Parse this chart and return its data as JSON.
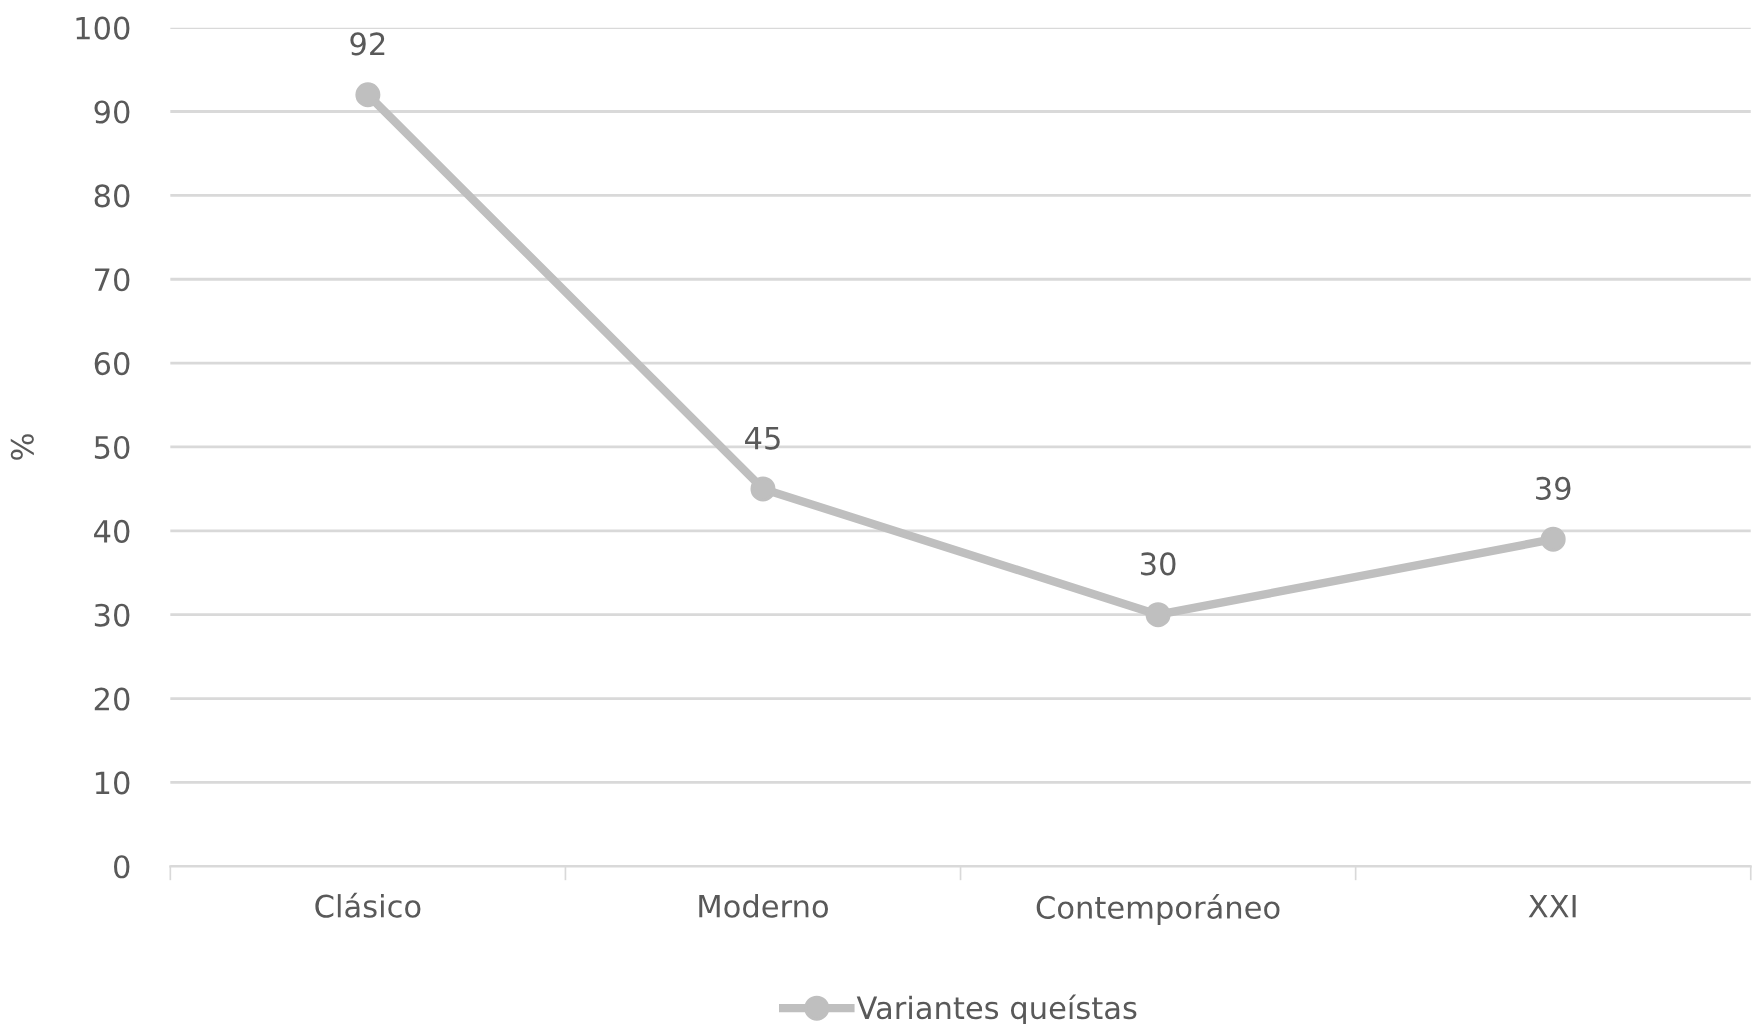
{
  "chart_data": {
    "type": "line",
    "ylabel": "%",
    "categories": [
      "Clásico",
      "Moderno",
      "Contemporáneo",
      "XXI"
    ],
    "series": [
      {
        "name": "Variantes queístas",
        "color": "#bfbfbf",
        "values": [
          92,
          45,
          30,
          39
        ]
      }
    ],
    "ylim": [
      0,
      100
    ],
    "yticks": [
      0,
      10,
      20,
      30,
      40,
      50,
      60,
      70,
      80,
      90,
      100
    ],
    "grid": "y",
    "legend": "bottom",
    "marker": "circle",
    "line_style": "solid",
    "data_labels": true
  }
}
